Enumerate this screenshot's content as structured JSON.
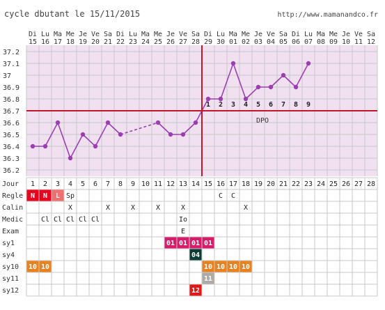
{
  "header": {
    "title": "cycle dbutant le 15/11/2015",
    "url": "http://www.mamanandco.fr"
  },
  "colors": {
    "chart_bg": "#f0e0f0",
    "line": "#9b3fb0",
    "ovulation_line": "#c0182a",
    "grid": "#c8c8c8",
    "table_grid": "#c8c8c8"
  },
  "chart_data": {
    "type": "line",
    "title": "cycle dbutant le 15/11/2015",
    "xlabel": "",
    "ylabel": "",
    "day_names": [
      "Di",
      "Lu",
      "Ma",
      "Me",
      "Je",
      "Ve",
      "Sa",
      "Di",
      "Lu",
      "Ma",
      "Me",
      "Je",
      "Ve",
      "Sa",
      "Di",
      "Lu",
      "Ma",
      "Me",
      "Je",
      "Ve",
      "Sa",
      "Di",
      "Lu",
      "Ma",
      "Me",
      "Je",
      "Ve",
      "Sa"
    ],
    "dates": [
      "15",
      "16",
      "17",
      "18",
      "19",
      "20",
      "21",
      "22",
      "23",
      "24",
      "25",
      "26",
      "27",
      "28",
      "29",
      "30",
      "01",
      "02",
      "03",
      "04",
      "05",
      "06",
      "07",
      "08",
      "09",
      "10",
      "11",
      "12"
    ],
    "cycle_days": [
      "1",
      "2",
      "3",
      "4",
      "5",
      "6",
      "7",
      "8",
      "9",
      "10",
      "11",
      "12",
      "13",
      "14",
      "15",
      "16",
      "17",
      "18",
      "19",
      "20",
      "21",
      "22",
      "23",
      "24",
      "25",
      "26",
      "27",
      "28"
    ],
    "y_ticks": [
      "37.2",
      "37.1",
      "37",
      "36.9",
      "36.8",
      "36.7",
      "36.6",
      "36.5",
      "36.4",
      "36.3",
      "36.2"
    ],
    "ylim": [
      36.2,
      37.2
    ],
    "coverline": 36.7,
    "ovulation_after_day": 14,
    "grid": true,
    "temperatures": [
      {
        "day": 1,
        "value": 36.4
      },
      {
        "day": 2,
        "value": 36.4
      },
      {
        "day": 3,
        "value": 36.6
      },
      {
        "day": 4,
        "value": 36.3
      },
      {
        "day": 5,
        "value": 36.5
      },
      {
        "day": 6,
        "value": 36.4
      },
      {
        "day": 7,
        "value": 36.6
      },
      {
        "day": 8,
        "value": 36.5
      },
      {
        "day": 11,
        "value": 36.6
      },
      {
        "day": 12,
        "value": 36.5
      },
      {
        "day": 13,
        "value": 36.5
      },
      {
        "day": 14,
        "value": 36.6
      },
      {
        "day": 15,
        "value": 36.8
      },
      {
        "day": 16,
        "value": 36.8
      },
      {
        "day": 17,
        "value": 37.1
      },
      {
        "day": 18,
        "value": 36.8
      },
      {
        "day": 19,
        "value": 36.9
      },
      {
        "day": 20,
        "value": 36.9
      },
      {
        "day": 21,
        "value": 37.0
      },
      {
        "day": 22,
        "value": 36.9
      },
      {
        "day": 23,
        "value": 37.1
      }
    ],
    "dashed_segments": [
      [
        8,
        11
      ]
    ],
    "post_ovulation_labels": [
      {
        "day": 15,
        "text": "1"
      },
      {
        "day": 16,
        "text": "2"
      },
      {
        "day": 17,
        "text": "3"
      },
      {
        "day": 18,
        "text": "4"
      },
      {
        "day": 19,
        "text": "5"
      },
      {
        "day": 20,
        "text": "6"
      },
      {
        "day": 21,
        "text": "7"
      },
      {
        "day": 22,
        "text": "8"
      },
      {
        "day": 23,
        "text": "9"
      }
    ],
    "dpo_label": {
      "day": 19,
      "text": "DPO"
    }
  },
  "table": {
    "row_labels": [
      "Jour",
      "Regle",
      "Calin",
      "Medic",
      "Exam",
      "sy1",
      "sy4",
      "sy10",
      "sy11",
      "sy12"
    ],
    "cells": [
      {
        "row": 1,
        "day": 1,
        "text": "N",
        "bg": "#e8001c",
        "fg": "#ffffff"
      },
      {
        "row": 1,
        "day": 2,
        "text": "N",
        "bg": "#e8001c",
        "fg": "#ffffff"
      },
      {
        "row": 1,
        "day": 3,
        "text": "L",
        "bg": "#f07070",
        "fg": "#ffffff"
      },
      {
        "row": 1,
        "day": 4,
        "text": "Sp",
        "bg": "#ffffff",
        "fg": "#222222"
      },
      {
        "row": 1,
        "day": 16,
        "text": "C",
        "bg": "#ffffff",
        "fg": "#222222"
      },
      {
        "row": 1,
        "day": 17,
        "text": "C",
        "bg": "#ffffff",
        "fg": "#222222"
      },
      {
        "row": 2,
        "day": 4,
        "text": "X",
        "bg": "#ffffff",
        "fg": "#222222"
      },
      {
        "row": 2,
        "day": 7,
        "text": "X",
        "bg": "#ffffff",
        "fg": "#222222"
      },
      {
        "row": 2,
        "day": 9,
        "text": "X",
        "bg": "#ffffff",
        "fg": "#222222"
      },
      {
        "row": 2,
        "day": 11,
        "text": "X",
        "bg": "#ffffff",
        "fg": "#222222"
      },
      {
        "row": 2,
        "day": 13,
        "text": "X",
        "bg": "#ffffff",
        "fg": "#222222"
      },
      {
        "row": 2,
        "day": 18,
        "text": "X",
        "bg": "#ffffff",
        "fg": "#222222"
      },
      {
        "row": 3,
        "day": 2,
        "text": "Cl",
        "bg": "#ffffff",
        "fg": "#222222"
      },
      {
        "row": 3,
        "day": 3,
        "text": "Cl",
        "bg": "#ffffff",
        "fg": "#222222"
      },
      {
        "row": 3,
        "day": 4,
        "text": "Cl",
        "bg": "#ffffff",
        "fg": "#222222"
      },
      {
        "row": 3,
        "day": 5,
        "text": "Cl",
        "bg": "#ffffff",
        "fg": "#222222"
      },
      {
        "row": 3,
        "day": 6,
        "text": "Cl",
        "bg": "#ffffff",
        "fg": "#222222"
      },
      {
        "row": 3,
        "day": 13,
        "text": "Io",
        "bg": "#ffffff",
        "fg": "#222222"
      },
      {
        "row": 4,
        "day": 13,
        "text": "E",
        "bg": "#ffffff",
        "fg": "#222222"
      },
      {
        "row": 5,
        "day": 12,
        "text": "01",
        "bg": "#d81b6a",
        "fg": "#ffffff"
      },
      {
        "row": 5,
        "day": 13,
        "text": "01",
        "bg": "#d81b6a",
        "fg": "#ffffff"
      },
      {
        "row": 5,
        "day": 14,
        "text": "01",
        "bg": "#d81b6a",
        "fg": "#ffffff"
      },
      {
        "row": 5,
        "day": 15,
        "text": "01",
        "bg": "#d81b6a",
        "fg": "#ffffff"
      },
      {
        "row": 6,
        "day": 14,
        "text": "04",
        "bg": "#0d3d34",
        "fg": "#ffffff"
      },
      {
        "row": 7,
        "day": 1,
        "text": "10",
        "bg": "#e8821e",
        "fg": "#ffffff"
      },
      {
        "row": 7,
        "day": 2,
        "text": "10",
        "bg": "#e8821e",
        "fg": "#ffffff"
      },
      {
        "row": 7,
        "day": 15,
        "text": "10",
        "bg": "#e8821e",
        "fg": "#ffffff"
      },
      {
        "row": 7,
        "day": 16,
        "text": "10",
        "bg": "#e8821e",
        "fg": "#ffffff"
      },
      {
        "row": 7,
        "day": 17,
        "text": "10",
        "bg": "#e8821e",
        "fg": "#ffffff"
      },
      {
        "row": 7,
        "day": 18,
        "text": "10",
        "bg": "#e8821e",
        "fg": "#ffffff"
      },
      {
        "row": 8,
        "day": 15,
        "text": "11",
        "bg": "#b0aaa6",
        "fg": "#ffffff"
      },
      {
        "row": 9,
        "day": 14,
        "text": "12",
        "bg": "#e01818",
        "fg": "#ffffff"
      }
    ]
  }
}
